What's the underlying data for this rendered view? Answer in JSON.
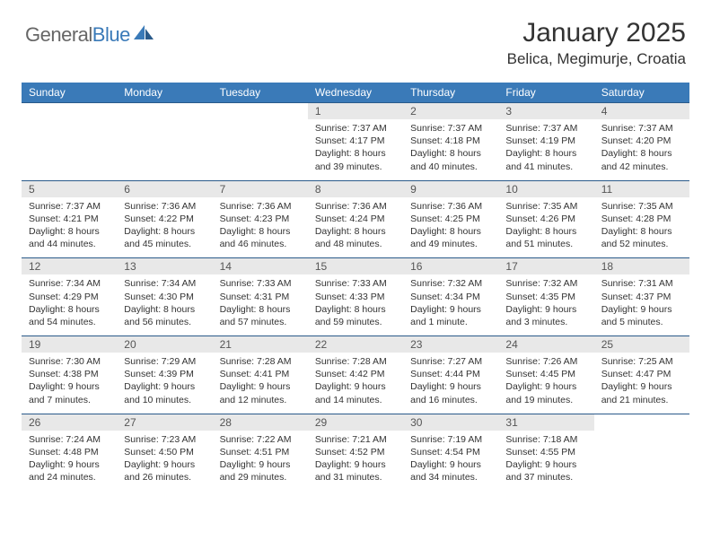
{
  "brand": {
    "part1": "General",
    "part2": "Blue"
  },
  "title": "January 2025",
  "location": "Belica, Megimurje, Croatia",
  "colors": {
    "header_bg": "#3a7ab8",
    "header_border": "#2a5a8a",
    "daynum_bg": "#e8e8e8",
    "text": "#333333",
    "logo_gray": "#666666",
    "logo_blue": "#3a7ab8"
  },
  "day_headers": [
    "Sunday",
    "Monday",
    "Tuesday",
    "Wednesday",
    "Thursday",
    "Friday",
    "Saturday"
  ],
  "weeks": [
    {
      "nums": [
        "",
        "",
        "",
        "1",
        "2",
        "3",
        "4"
      ],
      "cells": [
        null,
        null,
        null,
        {
          "sunrise": "7:37 AM",
          "sunset": "4:17 PM",
          "daylight": "8 hours and 39 minutes."
        },
        {
          "sunrise": "7:37 AM",
          "sunset": "4:18 PM",
          "daylight": "8 hours and 40 minutes."
        },
        {
          "sunrise": "7:37 AM",
          "sunset": "4:19 PM",
          "daylight": "8 hours and 41 minutes."
        },
        {
          "sunrise": "7:37 AM",
          "sunset": "4:20 PM",
          "daylight": "8 hours and 42 minutes."
        }
      ]
    },
    {
      "nums": [
        "5",
        "6",
        "7",
        "8",
        "9",
        "10",
        "11"
      ],
      "cells": [
        {
          "sunrise": "7:37 AM",
          "sunset": "4:21 PM",
          "daylight": "8 hours and 44 minutes."
        },
        {
          "sunrise": "7:36 AM",
          "sunset": "4:22 PM",
          "daylight": "8 hours and 45 minutes."
        },
        {
          "sunrise": "7:36 AM",
          "sunset": "4:23 PM",
          "daylight": "8 hours and 46 minutes."
        },
        {
          "sunrise": "7:36 AM",
          "sunset": "4:24 PM",
          "daylight": "8 hours and 48 minutes."
        },
        {
          "sunrise": "7:36 AM",
          "sunset": "4:25 PM",
          "daylight": "8 hours and 49 minutes."
        },
        {
          "sunrise": "7:35 AM",
          "sunset": "4:26 PM",
          "daylight": "8 hours and 51 minutes."
        },
        {
          "sunrise": "7:35 AM",
          "sunset": "4:28 PM",
          "daylight": "8 hours and 52 minutes."
        }
      ]
    },
    {
      "nums": [
        "12",
        "13",
        "14",
        "15",
        "16",
        "17",
        "18"
      ],
      "cells": [
        {
          "sunrise": "7:34 AM",
          "sunset": "4:29 PM",
          "daylight": "8 hours and 54 minutes."
        },
        {
          "sunrise": "7:34 AM",
          "sunset": "4:30 PM",
          "daylight": "8 hours and 56 minutes."
        },
        {
          "sunrise": "7:33 AM",
          "sunset": "4:31 PM",
          "daylight": "8 hours and 57 minutes."
        },
        {
          "sunrise": "7:33 AM",
          "sunset": "4:33 PM",
          "daylight": "8 hours and 59 minutes."
        },
        {
          "sunrise": "7:32 AM",
          "sunset": "4:34 PM",
          "daylight": "9 hours and 1 minute."
        },
        {
          "sunrise": "7:32 AM",
          "sunset": "4:35 PM",
          "daylight": "9 hours and 3 minutes."
        },
        {
          "sunrise": "7:31 AM",
          "sunset": "4:37 PM",
          "daylight": "9 hours and 5 minutes."
        }
      ]
    },
    {
      "nums": [
        "19",
        "20",
        "21",
        "22",
        "23",
        "24",
        "25"
      ],
      "cells": [
        {
          "sunrise": "7:30 AM",
          "sunset": "4:38 PM",
          "daylight": "9 hours and 7 minutes."
        },
        {
          "sunrise": "7:29 AM",
          "sunset": "4:39 PM",
          "daylight": "9 hours and 10 minutes."
        },
        {
          "sunrise": "7:28 AM",
          "sunset": "4:41 PM",
          "daylight": "9 hours and 12 minutes."
        },
        {
          "sunrise": "7:28 AM",
          "sunset": "4:42 PM",
          "daylight": "9 hours and 14 minutes."
        },
        {
          "sunrise": "7:27 AM",
          "sunset": "4:44 PM",
          "daylight": "9 hours and 16 minutes."
        },
        {
          "sunrise": "7:26 AM",
          "sunset": "4:45 PM",
          "daylight": "9 hours and 19 minutes."
        },
        {
          "sunrise": "7:25 AM",
          "sunset": "4:47 PM",
          "daylight": "9 hours and 21 minutes."
        }
      ]
    },
    {
      "nums": [
        "26",
        "27",
        "28",
        "29",
        "30",
        "31",
        ""
      ],
      "cells": [
        {
          "sunrise": "7:24 AM",
          "sunset": "4:48 PM",
          "daylight": "9 hours and 24 minutes."
        },
        {
          "sunrise": "7:23 AM",
          "sunset": "4:50 PM",
          "daylight": "9 hours and 26 minutes."
        },
        {
          "sunrise": "7:22 AM",
          "sunset": "4:51 PM",
          "daylight": "9 hours and 29 minutes."
        },
        {
          "sunrise": "7:21 AM",
          "sunset": "4:52 PM",
          "daylight": "9 hours and 31 minutes."
        },
        {
          "sunrise": "7:19 AM",
          "sunset": "4:54 PM",
          "daylight": "9 hours and 34 minutes."
        },
        {
          "sunrise": "7:18 AM",
          "sunset": "4:55 PM",
          "daylight": "9 hours and 37 minutes."
        },
        null
      ]
    }
  ],
  "labels": {
    "sunrise": "Sunrise:",
    "sunset": "Sunset:",
    "daylight": "Daylight:"
  }
}
